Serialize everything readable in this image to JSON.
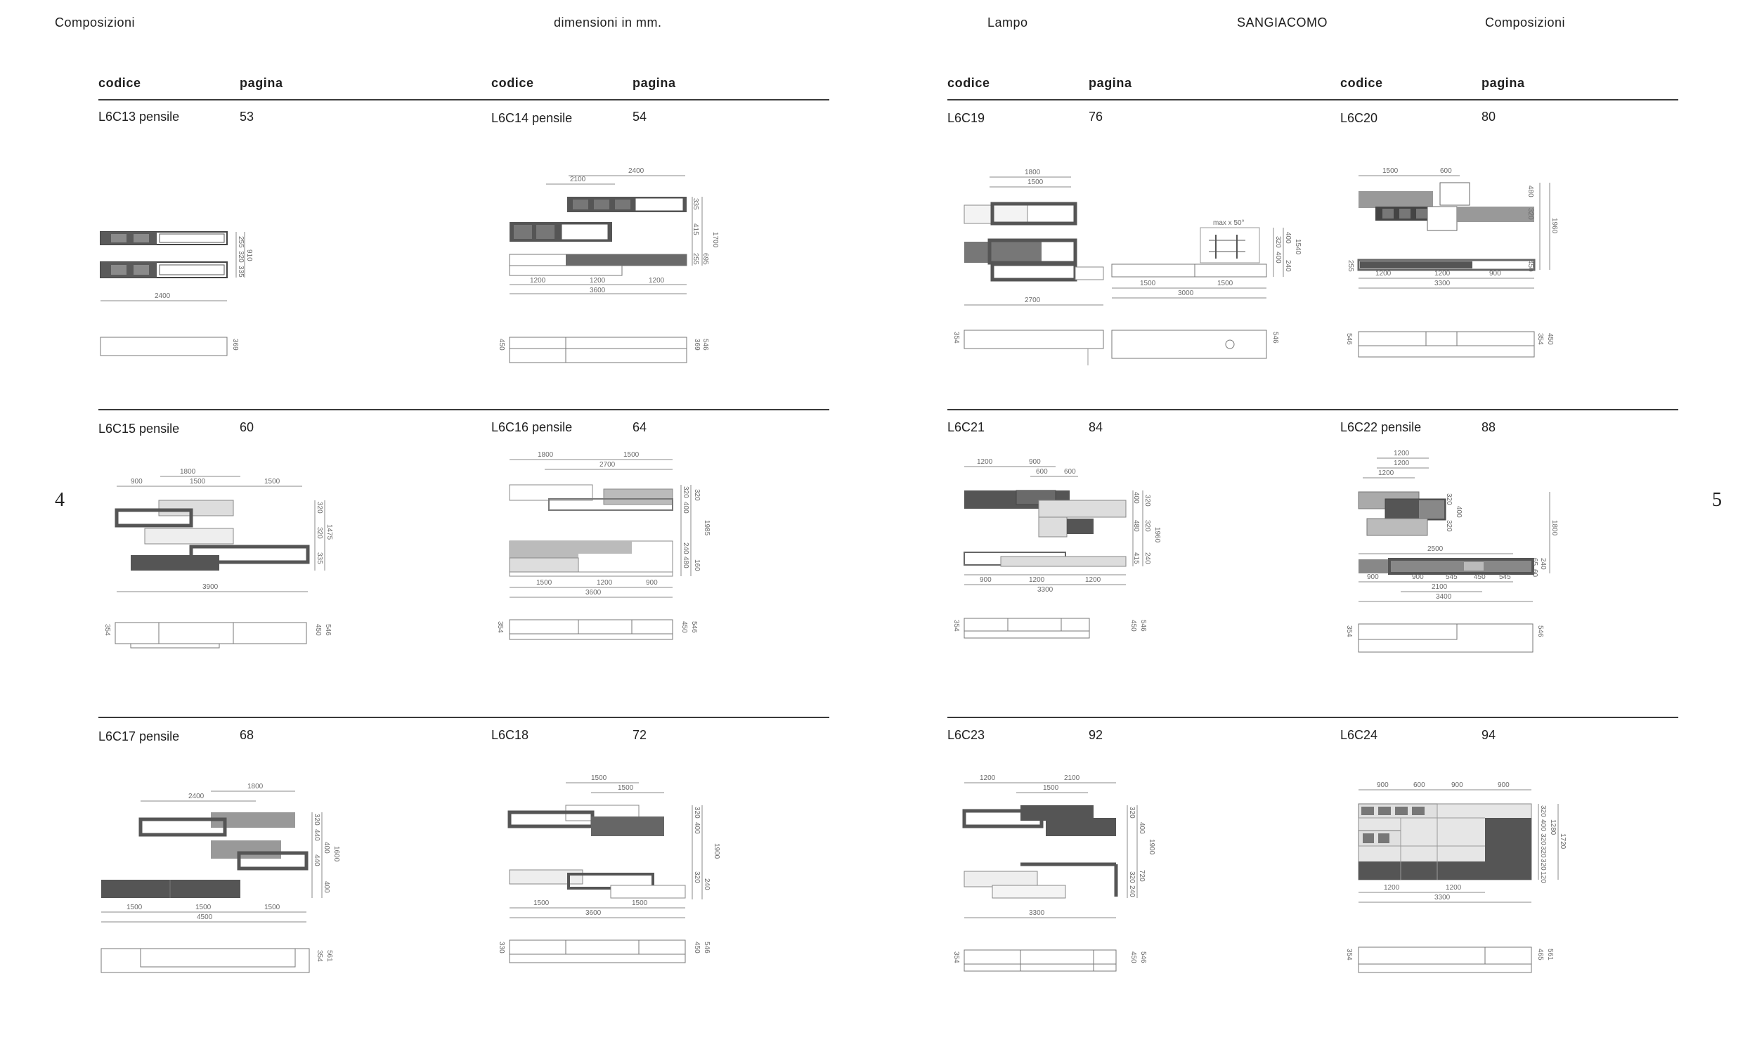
{
  "header": {
    "left_title": "Composizioni",
    "dimensions_note": "dimensioni in mm.",
    "collection": "Lampo",
    "brand": "SANGIACOMO",
    "right_title": "Composizioni"
  },
  "page_numbers": {
    "left": "4",
    "right": "5"
  },
  "columns": {
    "code_label": "codice",
    "page_label": "pagina"
  },
  "compositions": [
    {
      "code": "L6C13 pensile",
      "page": "53",
      "dims": [
        "255",
        "320",
        "335",
        "910",
        "2400",
        "369"
      ]
    },
    {
      "code": "L6C14 pensile",
      "page": "54",
      "dims": [
        "2400",
        "2100",
        "335",
        "415",
        "255",
        "1700",
        "695",
        "1200",
        "1200",
        "1200",
        "3600",
        "450",
        "546",
        "369"
      ]
    },
    {
      "code": "L6C19",
      "page": "76",
      "dims": [
        "1800",
        "1500",
        "2700",
        "320",
        "400",
        "400",
        "240",
        "1540",
        "max x 50°",
        "1500",
        "1500",
        "3000",
        "354",
        "546"
      ]
    },
    {
      "code": "L6C20",
      "page": "80",
      "dims": [
        "1500",
        "600",
        "480",
        "320",
        "1960",
        "450",
        "255",
        "1200",
        "1200",
        "900",
        "3300",
        "546",
        "354",
        "450"
      ]
    },
    {
      "code": "L6C15 pensile",
      "page": "60",
      "dims": [
        "1800",
        "900",
        "1500",
        "1500",
        "320",
        "320",
        "335",
        "1475",
        "3900",
        "354",
        "450",
        "546"
      ]
    },
    {
      "code": "L6C16 pensile",
      "page": "64",
      "dims": [
        "1800",
        "1500",
        "2700",
        "320",
        "400",
        "320",
        "240",
        "480",
        "1985",
        "160",
        "1500",
        "1200",
        "900",
        "3600",
        "354",
        "450",
        "546"
      ]
    },
    {
      "code": "L6C21",
      "page": "84",
      "dims": [
        "1200",
        "900",
        "600",
        "600",
        "400",
        "320",
        "480",
        "320",
        "1960",
        "415",
        "240",
        "900",
        "1200",
        "1200",
        "3300",
        "354",
        "450",
        "546"
      ]
    },
    {
      "code": "L6C22 pensile",
      "page": "88",
      "dims": [
        "1200",
        "1200",
        "1200",
        "320",
        "400",
        "320",
        "1800",
        "2500",
        "240",
        "65",
        "60",
        "900",
        "900",
        "545",
        "450",
        "545",
        "2100",
        "3400",
        "354",
        "546"
      ]
    },
    {
      "code": "L6C17 pensile",
      "page": "68",
      "dims": [
        "1800",
        "2400",
        "320",
        "440",
        "400",
        "440",
        "1600",
        "400",
        "1500",
        "1500",
        "1500",
        "4500",
        "354",
        "561"
      ]
    },
    {
      "code": "L6C18",
      "page": "72",
      "dims": [
        "1500",
        "1500",
        "320",
        "400",
        "1900",
        "320",
        "240",
        "1500",
        "1500",
        "3600",
        "330",
        "450",
        "546"
      ]
    },
    {
      "code": "L6C23",
      "page": "92",
      "dims": [
        "1200",
        "2100",
        "1500",
        "320",
        "400",
        "1900",
        "320",
        "240",
        "720",
        "3300",
        "354",
        "450",
        "546"
      ]
    },
    {
      "code": "L6C24",
      "page": "94",
      "dims": [
        "900",
        "600",
        "900",
        "900",
        "320",
        "400",
        "320",
        "320",
        "320",
        "120",
        "1280",
        "1720",
        "1200",
        "1200",
        "3300",
        "354",
        "465",
        "561"
      ]
    }
  ]
}
